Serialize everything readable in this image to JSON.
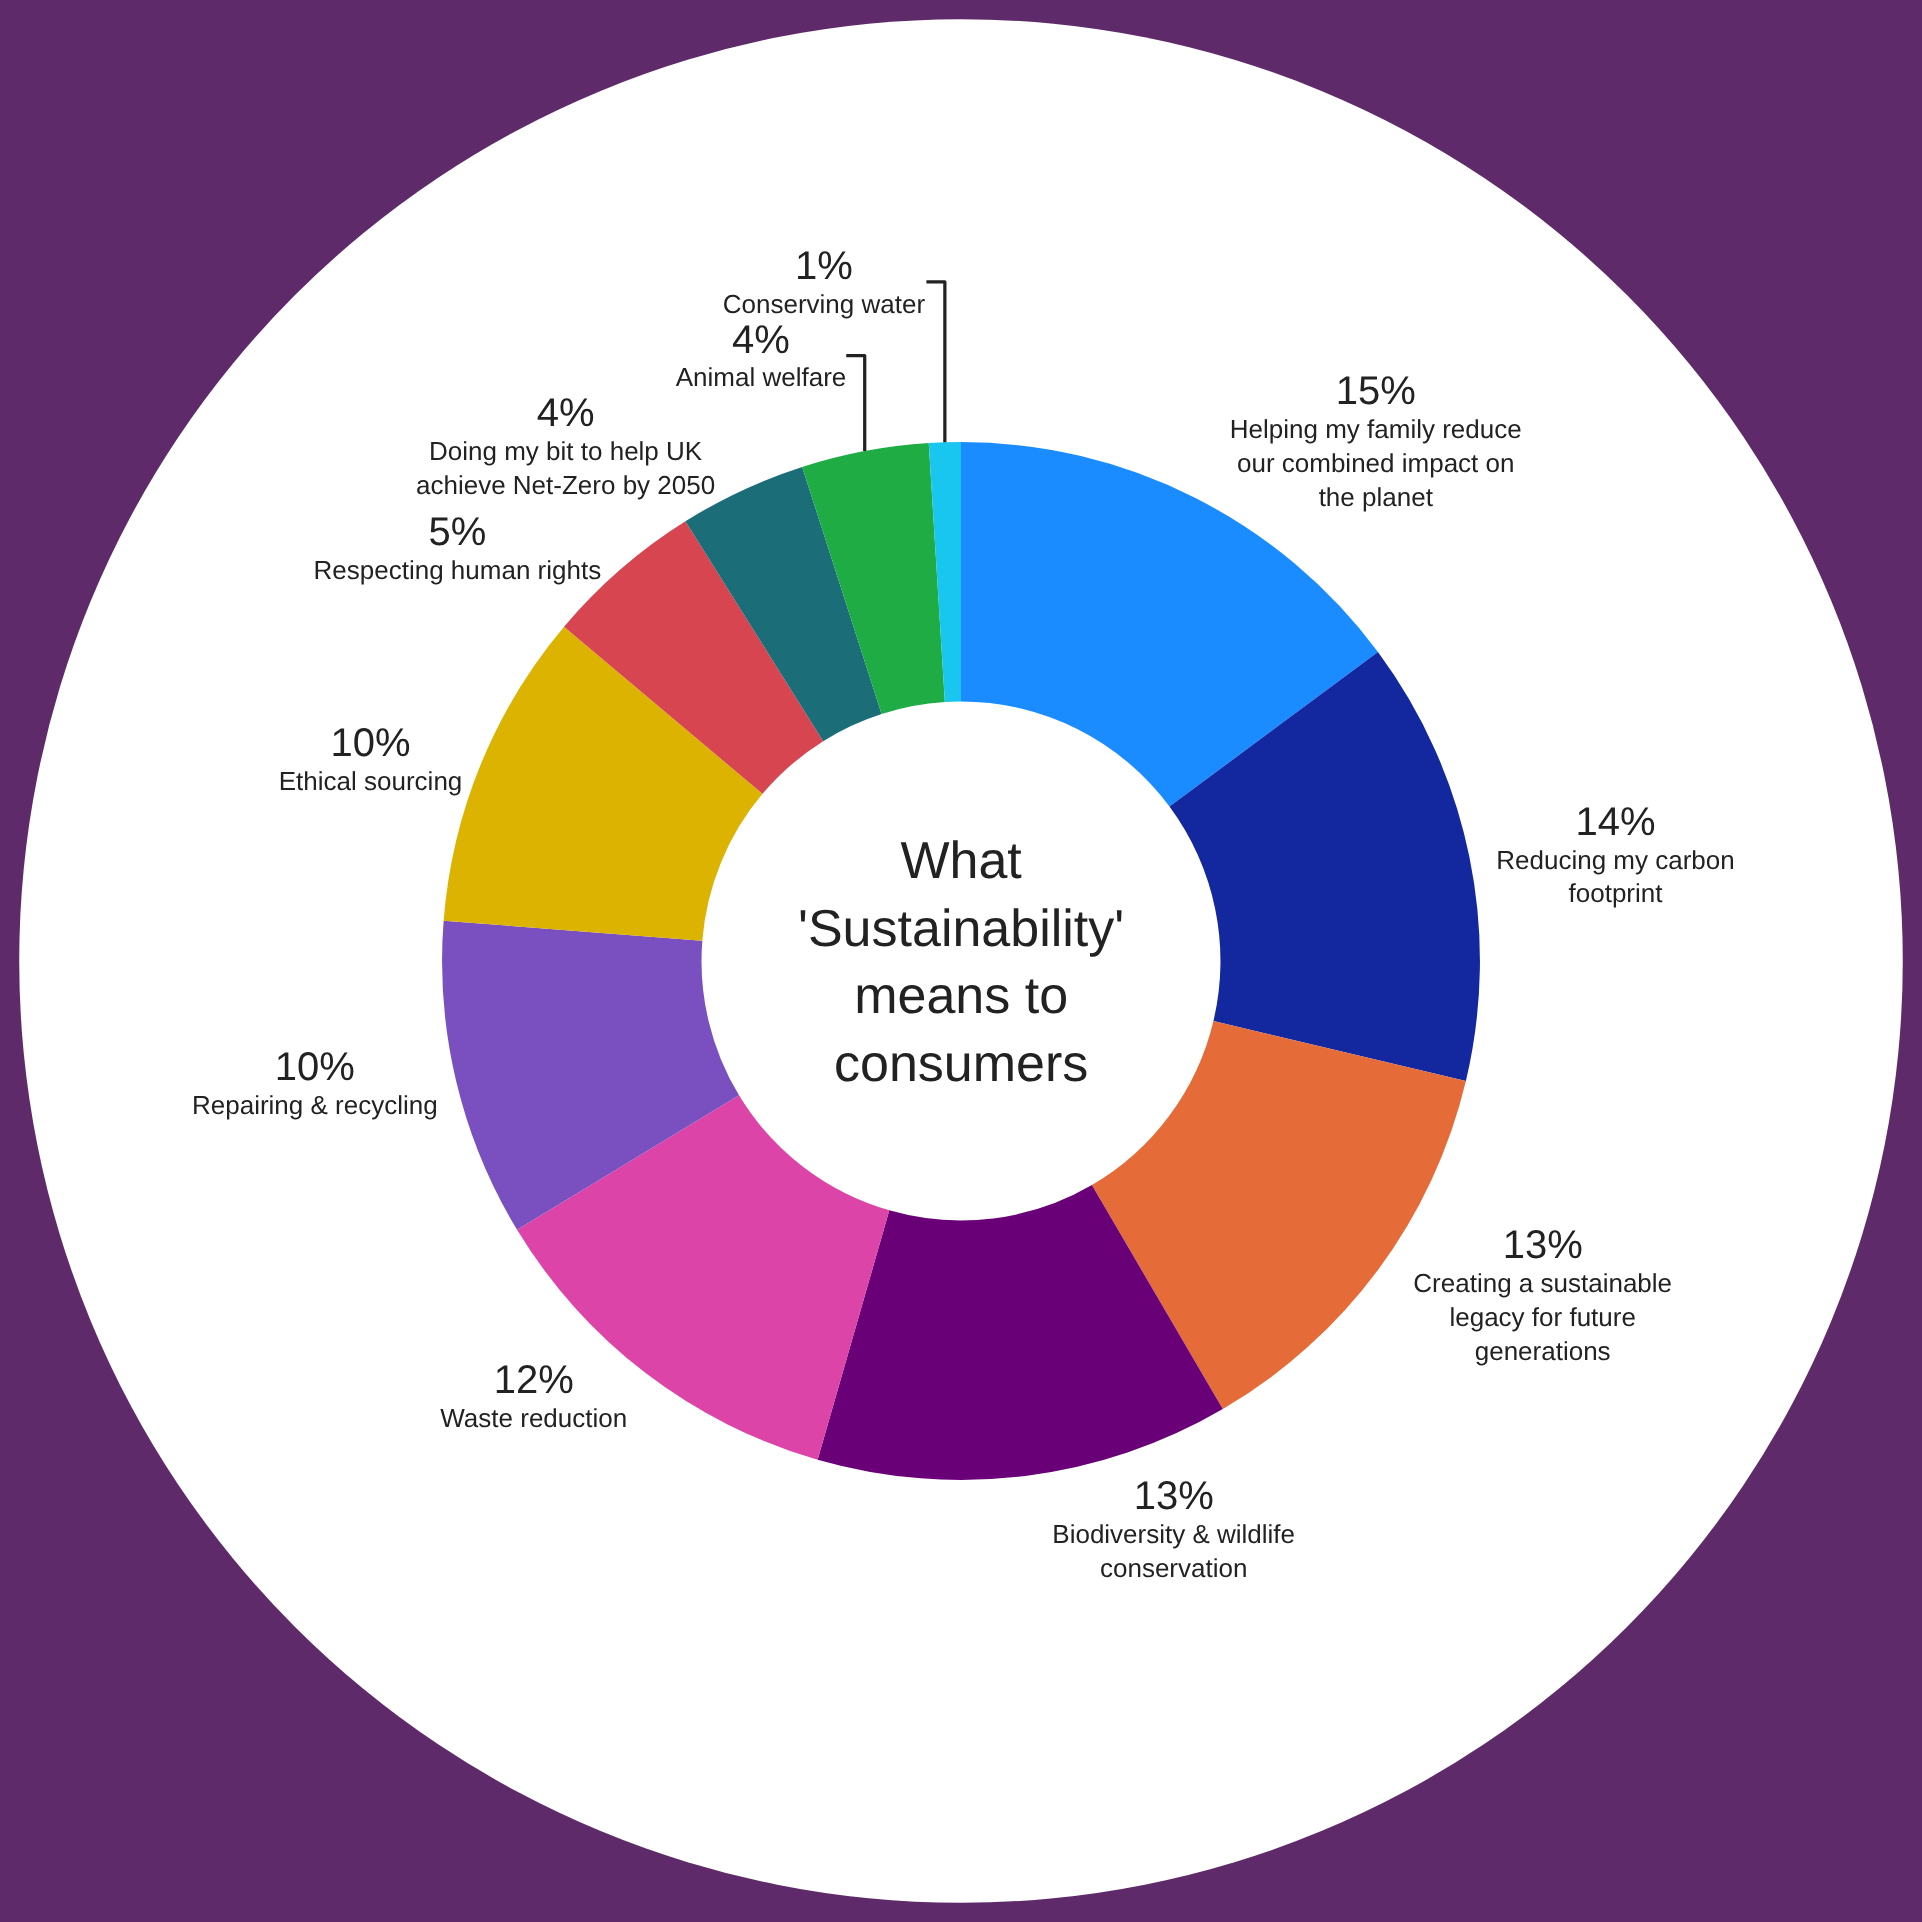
{
  "chart_data": {
    "type": "donut",
    "title": "What 'Sustainability' means to consumers",
    "categories": [
      "Helping my family reduce our combined impact on the planet",
      "Reducing my carbon footprint",
      "Creating a sustainable legacy for future generations",
      "Biodiversity & wildlife conservation",
      "Waste reduction",
      "Repairing & recycling",
      "Ethical sourcing",
      "Respecting human rights",
      "Doing my bit to help UK achieve Net-Zero by 2050",
      "Animal welfare",
      "Conserving water"
    ],
    "values": [
      15,
      14,
      13,
      13,
      12,
      10,
      10,
      5,
      4,
      4,
      1
    ],
    "value_labels": [
      "15%",
      "14%",
      "13%",
      "13%",
      "12%",
      "10%",
      "10%",
      "5%",
      "4%",
      "4%",
      "1%"
    ],
    "colors": [
      "#1a8cff",
      "#13279e",
      "#e56b38",
      "#6a0077",
      "#dd44a8",
      "#7a50c0",
      "#dbb300",
      "#d64550",
      "#1b6e78",
      "#1fac44",
      "#19c6f0"
    ]
  }
}
